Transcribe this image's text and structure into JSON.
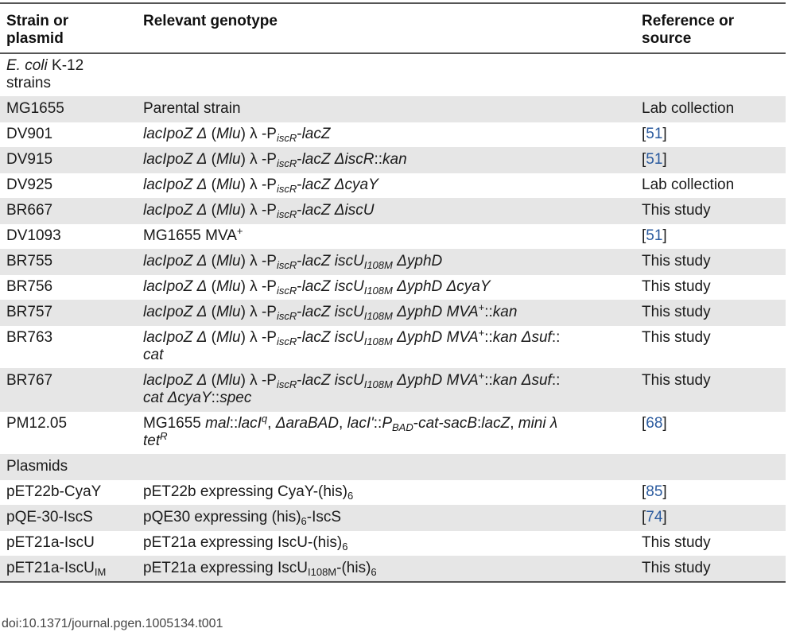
{
  "table": {
    "headers": [
      "Strain or\nplasmid",
      "Relevant genotype",
      "Reference or\nsource"
    ],
    "rows": [
      {
        "type": "section",
        "strain": "<i>E. coli</i> K-12<br>strains",
        "genotype": "",
        "ref": ""
      },
      {
        "strain": "MG1655",
        "genotype": "Parental strain",
        "ref": "Lab collection"
      },
      {
        "strain": "DV901",
        "genotype": "<i>lacIpoZ Δ</i> (<i>Mlu</i>) λ -P<sub><i>iscR</i></sub>-<i>lacZ</i>",
        "ref": "[<span class=\"ref\">51</span>]"
      },
      {
        "strain": "DV915",
        "genotype": "<i>lacIpoZ Δ</i> (<i>Mlu</i>) λ -P<sub><i>iscR</i></sub>-<i>lacZ ΔiscR</i>::<i>kan</i>",
        "ref": "[<span class=\"ref\">51</span>]"
      },
      {
        "strain": "DV925",
        "genotype": "<i>lacIpoZ Δ</i> (<i>Mlu</i>) λ -P<sub><i>iscR</i></sub>-<i>lacZ ΔcyaY</i>",
        "ref": "Lab collection"
      },
      {
        "strain": "BR667",
        "genotype": "<i>lacIpoZ Δ</i> (<i>Mlu</i>) λ -P<sub><i>iscR</i></sub>-<i>lacZ ΔiscU</i>",
        "ref": "This study"
      },
      {
        "strain": "DV1093",
        "genotype": "MG1655 MVA<sup>+</sup>",
        "ref": "[<span class=\"ref\">51</span>]"
      },
      {
        "strain": "BR755",
        "genotype": "<i>lacIpoZ Δ</i> (<i>Mlu</i>) λ -P<sub><i>iscR</i></sub>-<i>lacZ iscU</i><sub><i>I108M</i></sub> <i>ΔyphD</i>",
        "ref": "This study"
      },
      {
        "strain": "BR756",
        "genotype": "<i>lacIpoZ Δ</i> (<i>Mlu</i>) λ -P<sub><i>iscR</i></sub>-<i>lacZ iscU</i><sub><i>I108M</i></sub> <i>ΔyphD ΔcyaY</i>",
        "ref": "This study"
      },
      {
        "strain": "BR757",
        "genotype": "<i>lacIpoZ Δ</i> (<i>Mlu</i>) λ -P<sub><i>iscR</i></sub>-<i>lacZ iscU</i><sub><i>I108M</i></sub> <i>ΔyphD MVA</i><sup>+</sup>::<i>kan</i>",
        "ref": "This study"
      },
      {
        "strain": "BR763",
        "genotype": "<i>lacIpoZ Δ</i> (<i>Mlu</i>) λ -P<sub><i>iscR</i></sub>-<i>lacZ iscU</i><sub><i>I108M</i></sub> <i>ΔyphD MVA</i><sup>+</sup>::<i>kan Δsuf</i>::<br><i>cat</i>",
        "ref": "This study"
      },
      {
        "strain": "BR767",
        "genotype": "<i>lacIpoZ Δ</i> (<i>Mlu</i>) λ -P<sub><i>iscR</i></sub>-<i>lacZ iscU</i><sub><i>I108M</i></sub> <i>ΔyphD MVA</i><sup>+</sup>::<i>kan Δsuf</i>::<br><i>cat ΔcyaY</i>::<i>spec</i>",
        "ref": "This study"
      },
      {
        "strain": "PM12.05",
        "genotype": "MG1655 <i>mal</i>::<i>lacI</i><sup><i>q</i></sup>, <i>ΔaraBAD</i>, <i>lacI'</i>::<i>P</i><sub><i>BAD</i></sub>-<i>cat-sacB</i>:<i>lacZ</i>, <i>mini λ</i><br><i>tet</i><sup><i>R</i></sup>",
        "ref": "[<span class=\"ref\">68</span>]"
      },
      {
        "type": "section",
        "strain": "Plasmids",
        "genotype": "",
        "ref": ""
      },
      {
        "strain": "pET22b-CyaY",
        "genotype": "pET22b expressing CyaY-(his)<sub>6</sub>",
        "ref": "[<span class=\"ref\">85</span>]"
      },
      {
        "strain": "pQE-30-IscS",
        "genotype": "pQE30 expressing (his)<sub>6</sub>-IscS",
        "ref": "[<span class=\"ref\">74</span>]"
      },
      {
        "strain": "pET21a-IscU",
        "genotype": "pET21a expressing IscU-(his)<sub>6</sub>",
        "ref": "This study"
      },
      {
        "strain": "pET21a-IscU<sub>IM</sub>",
        "genotype": "pET21a expressing IscU<sub>I108M</sub>-(his)<sub>6</sub>",
        "ref": "This study"
      }
    ]
  },
  "doi": "doi:10.1371/journal.pgen.1005134.t001"
}
